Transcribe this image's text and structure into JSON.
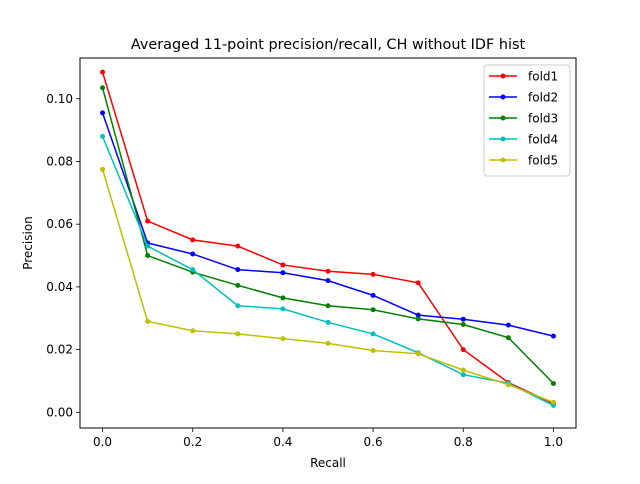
{
  "chart_data": {
    "type": "line",
    "title": "Averaged 11-point precision/recall, CH without IDF hist",
    "xlabel": "Recall",
    "ylabel": "Precision",
    "xlim": [
      -0.05,
      1.05
    ],
    "ylim": [
      -0.005,
      0.113
    ],
    "xticks": [
      0.0,
      0.2,
      0.4,
      0.6,
      0.8,
      1.0
    ],
    "xtick_labels": [
      "0.0",
      "0.2",
      "0.4",
      "0.6",
      "0.8",
      "1.0"
    ],
    "yticks": [
      0.0,
      0.02,
      0.04,
      0.06,
      0.08,
      0.1
    ],
    "ytick_labels": [
      "0.00",
      "0.02",
      "0.04",
      "0.06",
      "0.08",
      "0.10"
    ],
    "grid": false,
    "legend_position": "top-right",
    "x": [
      0.0,
      0.1,
      0.2,
      0.3,
      0.4,
      0.5,
      0.6,
      0.7,
      0.8,
      0.9,
      1.0
    ],
    "series": [
      {
        "name": "fold1",
        "color": "#ff0000",
        "values": [
          0.1085,
          0.061,
          0.055,
          0.053,
          0.047,
          0.045,
          0.044,
          0.0413,
          0.02,
          0.0095,
          0.0028
        ]
      },
      {
        "name": "fold2",
        "color": "#0000ff",
        "values": [
          0.0955,
          0.054,
          0.0505,
          0.0455,
          0.0445,
          0.042,
          0.0373,
          0.031,
          0.0297,
          0.0278,
          0.0243
        ]
      },
      {
        "name": "fold3",
        "color": "#008000",
        "values": [
          0.1035,
          0.05,
          0.0447,
          0.0405,
          0.0365,
          0.034,
          0.0327,
          0.0298,
          0.028,
          0.0238,
          0.0092
        ]
      },
      {
        "name": "fold4",
        "color": "#00bfbf",
        "values": [
          0.088,
          0.053,
          0.0455,
          0.034,
          0.033,
          0.0287,
          0.025,
          0.019,
          0.012,
          0.0093,
          0.0022
        ]
      },
      {
        "name": "fold5",
        "color": "#bfbf00",
        "values": [
          0.0775,
          0.029,
          0.026,
          0.025,
          0.0235,
          0.022,
          0.0197,
          0.0187,
          0.0135,
          0.0088,
          0.0032
        ]
      }
    ]
  }
}
